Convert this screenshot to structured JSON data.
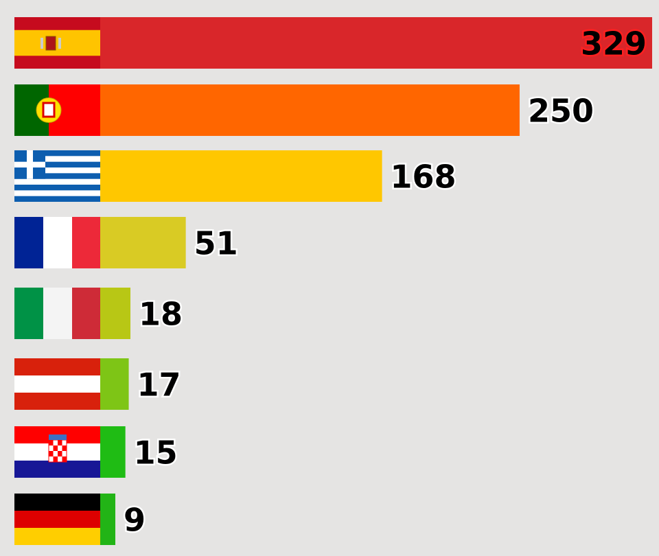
{
  "chart_data": {
    "type": "bar",
    "orientation": "horizontal",
    "values": [
      329,
      250,
      168,
      51,
      18,
      17,
      15,
      9
    ],
    "colors": [
      "#d9262a",
      "#ff6600",
      "#ffc700",
      "#d9cb24",
      "#b8c715",
      "#7ec516",
      "#1fbc14",
      "#22b416"
    ]
  }
}
